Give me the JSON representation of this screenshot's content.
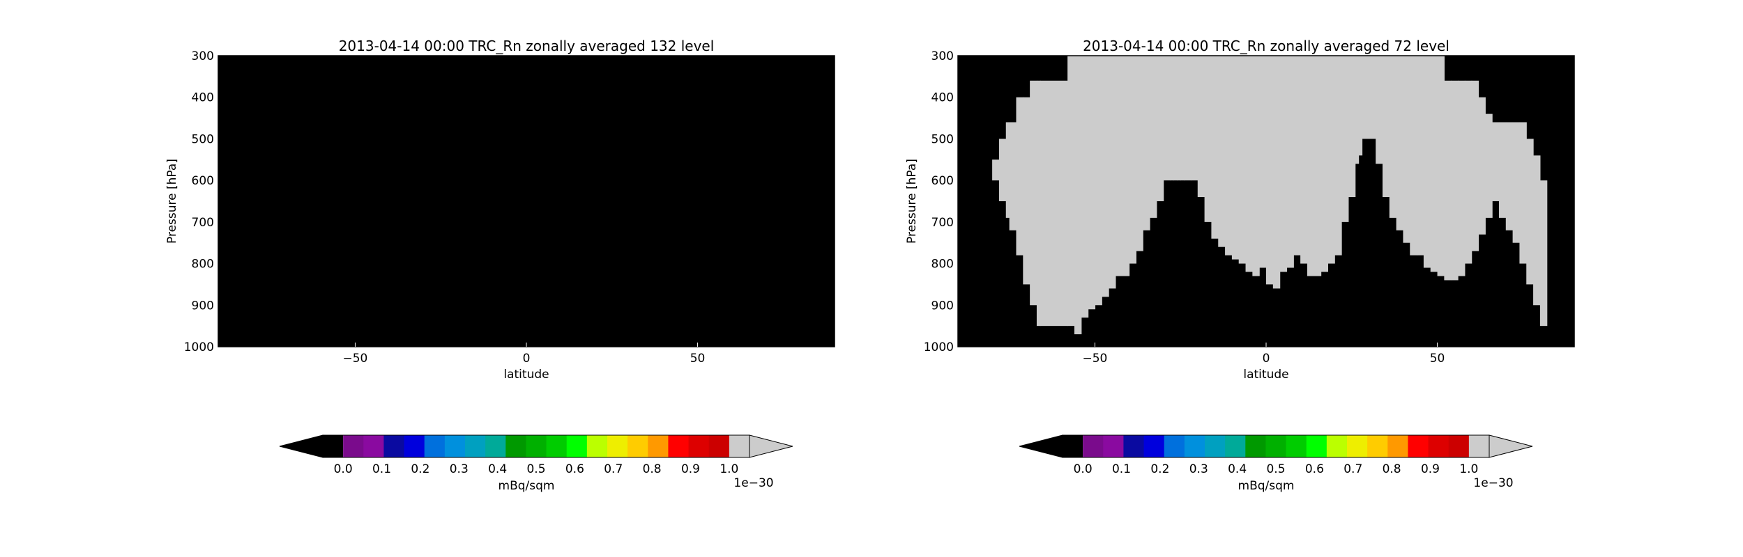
{
  "chart_data": [
    {
      "type": "heatmap",
      "title": "2013-04-14 00:00 TRC_Rn zonally averaged 132 level",
      "xlabel": "latitude",
      "ylabel": "Pressure [hPa]",
      "xlim": [
        -90,
        90
      ],
      "ylim": [
        1000,
        300
      ],
      "xticks": [
        -50,
        0,
        50
      ],
      "xticklabels": [
        "−50",
        "0",
        "50"
      ],
      "yticks": [
        300,
        400,
        500,
        600,
        700,
        800,
        900,
        1000
      ],
      "yticklabels": [
        "300",
        "400",
        "500",
        "600",
        "700",
        "800",
        "900",
        "1000"
      ],
      "background_value": 0.0,
      "high_regions": []
    },
    {
      "type": "heatmap",
      "title": "2013-04-14 00:00 TRC_Rn zonally averaged 72 level",
      "xlabel": "latitude",
      "ylabel": "Pressure [hPa]",
      "xlim": [
        -90,
        90
      ],
      "ylim": [
        1000,
        300
      ],
      "xticks": [
        -50,
        0,
        50
      ],
      "xticklabels": [
        "−50",
        "0",
        "50"
      ],
      "yticks": [
        300,
        400,
        500,
        600,
        700,
        800,
        900,
        1000
      ],
      "yticklabels": [
        "300",
        "400",
        "500",
        "600",
        "700",
        "800",
        "900",
        "1000"
      ],
      "background_value": 0.0,
      "high_value": 1.0,
      "high_regions": [
        {
          "lat": [
            -90,
            -85,
            -82,
            -80,
            -78,
            -76,
            -75,
            -73,
            -71,
            -69,
            -67,
            -66,
            -58,
            -56,
            -54,
            -52,
            -50,
            -48,
            -46,
            -44,
            -42,
            -40,
            -38,
            -36,
            -34,
            -32,
            -30,
            -28,
            -27,
            -26,
            -25,
            -24,
            -22,
            -20,
            -18,
            -16,
            -14,
            -12,
            -10,
            -8,
            -6,
            -4,
            -2,
            0,
            2,
            4,
            6,
            8,
            10,
            12,
            14,
            16,
            18,
            20,
            22,
            24,
            26,
            27,
            28,
            30,
            32,
            34,
            36,
            38,
            40,
            42,
            44,
            46,
            48,
            50,
            52,
            54,
            56,
            58,
            60,
            62,
            64,
            66,
            68,
            70,
            72,
            74,
            76,
            78,
            80,
            82,
            84,
            86
          ],
          "top_p": [
            1000,
            1000,
            600,
            550,
            500,
            460,
            460,
            400,
            400,
            360,
            360,
            360,
            300,
            300,
            300,
            300,
            300,
            300,
            300,
            300,
            300,
            300,
            300,
            300,
            300,
            300,
            300,
            300,
            300,
            300,
            300,
            300,
            300,
            300,
            300,
            300,
            300,
            300,
            300,
            300,
            300,
            300,
            300,
            300,
            300,
            300,
            300,
            300,
            300,
            300,
            300,
            300,
            300,
            300,
            300,
            300,
            300,
            300,
            300,
            300,
            300,
            300,
            300,
            300,
            300,
            300,
            300,
            300,
            300,
            300,
            360,
            360,
            360,
            360,
            360,
            400,
            440,
            460,
            460,
            460,
            460,
            460,
            500,
            540,
            600,
            1000,
            1000,
            1000
          ],
          "bottom_p": [
            600,
            600,
            600,
            600,
            650,
            690,
            720,
            780,
            850,
            900,
            950,
            950,
            950,
            970,
            930,
            910,
            900,
            880,
            860,
            830,
            830,
            800,
            770,
            720,
            690,
            650,
            600,
            600,
            600,
            600,
            600,
            600,
            600,
            640,
            700,
            740,
            760,
            780,
            790,
            800,
            820,
            830,
            810,
            850,
            860,
            820,
            810,
            780,
            800,
            830,
            830,
            820,
            800,
            780,
            700,
            640,
            560,
            540,
            500,
            500,
            560,
            640,
            690,
            720,
            750,
            780,
            780,
            810,
            820,
            830,
            840,
            840,
            830,
            800,
            770,
            730,
            690,
            650,
            690,
            720,
            750,
            800,
            850,
            900,
            950,
            980,
            1000,
            1000
          ]
        }
      ]
    }
  ],
  "colorbars": [
    {
      "label": "mBq/sqm",
      "ticklabels": [
        "0.0",
        "0.1",
        "0.2",
        "0.3",
        "0.4",
        "0.5",
        "0.6",
        "0.7",
        "0.8",
        "0.9",
        "1.0"
      ],
      "offset_text": "1e−30",
      "vmin": 0.0,
      "vmax": 1.0,
      "extend": "both"
    },
    {
      "label": "mBq/sqm",
      "ticklabels": [
        "0.0",
        "0.1",
        "0.2",
        "0.3",
        "0.4",
        "0.5",
        "0.6",
        "0.7",
        "0.8",
        "0.9",
        "1.0"
      ],
      "offset_text": "1e−30",
      "vmin": 0.0,
      "vmax": 1.0,
      "extend": "both"
    }
  ],
  "colors": {
    "low": "#000000",
    "high": "#cccccc",
    "colormap": [
      "#7a0b8c",
      "#8a0aa0",
      "#0a0aa0",
      "#0000dd",
      "#0070dd",
      "#0090dd",
      "#00a0c0",
      "#00aa99",
      "#009900",
      "#00b000",
      "#00cc00",
      "#00ff00",
      "#bbff00",
      "#eeee00",
      "#ffcc00",
      "#ff9900",
      "#ff0000",
      "#dd0000",
      "#cc0000"
    ],
    "extend_low": "#000000",
    "extend_high": "#cccccc"
  }
}
